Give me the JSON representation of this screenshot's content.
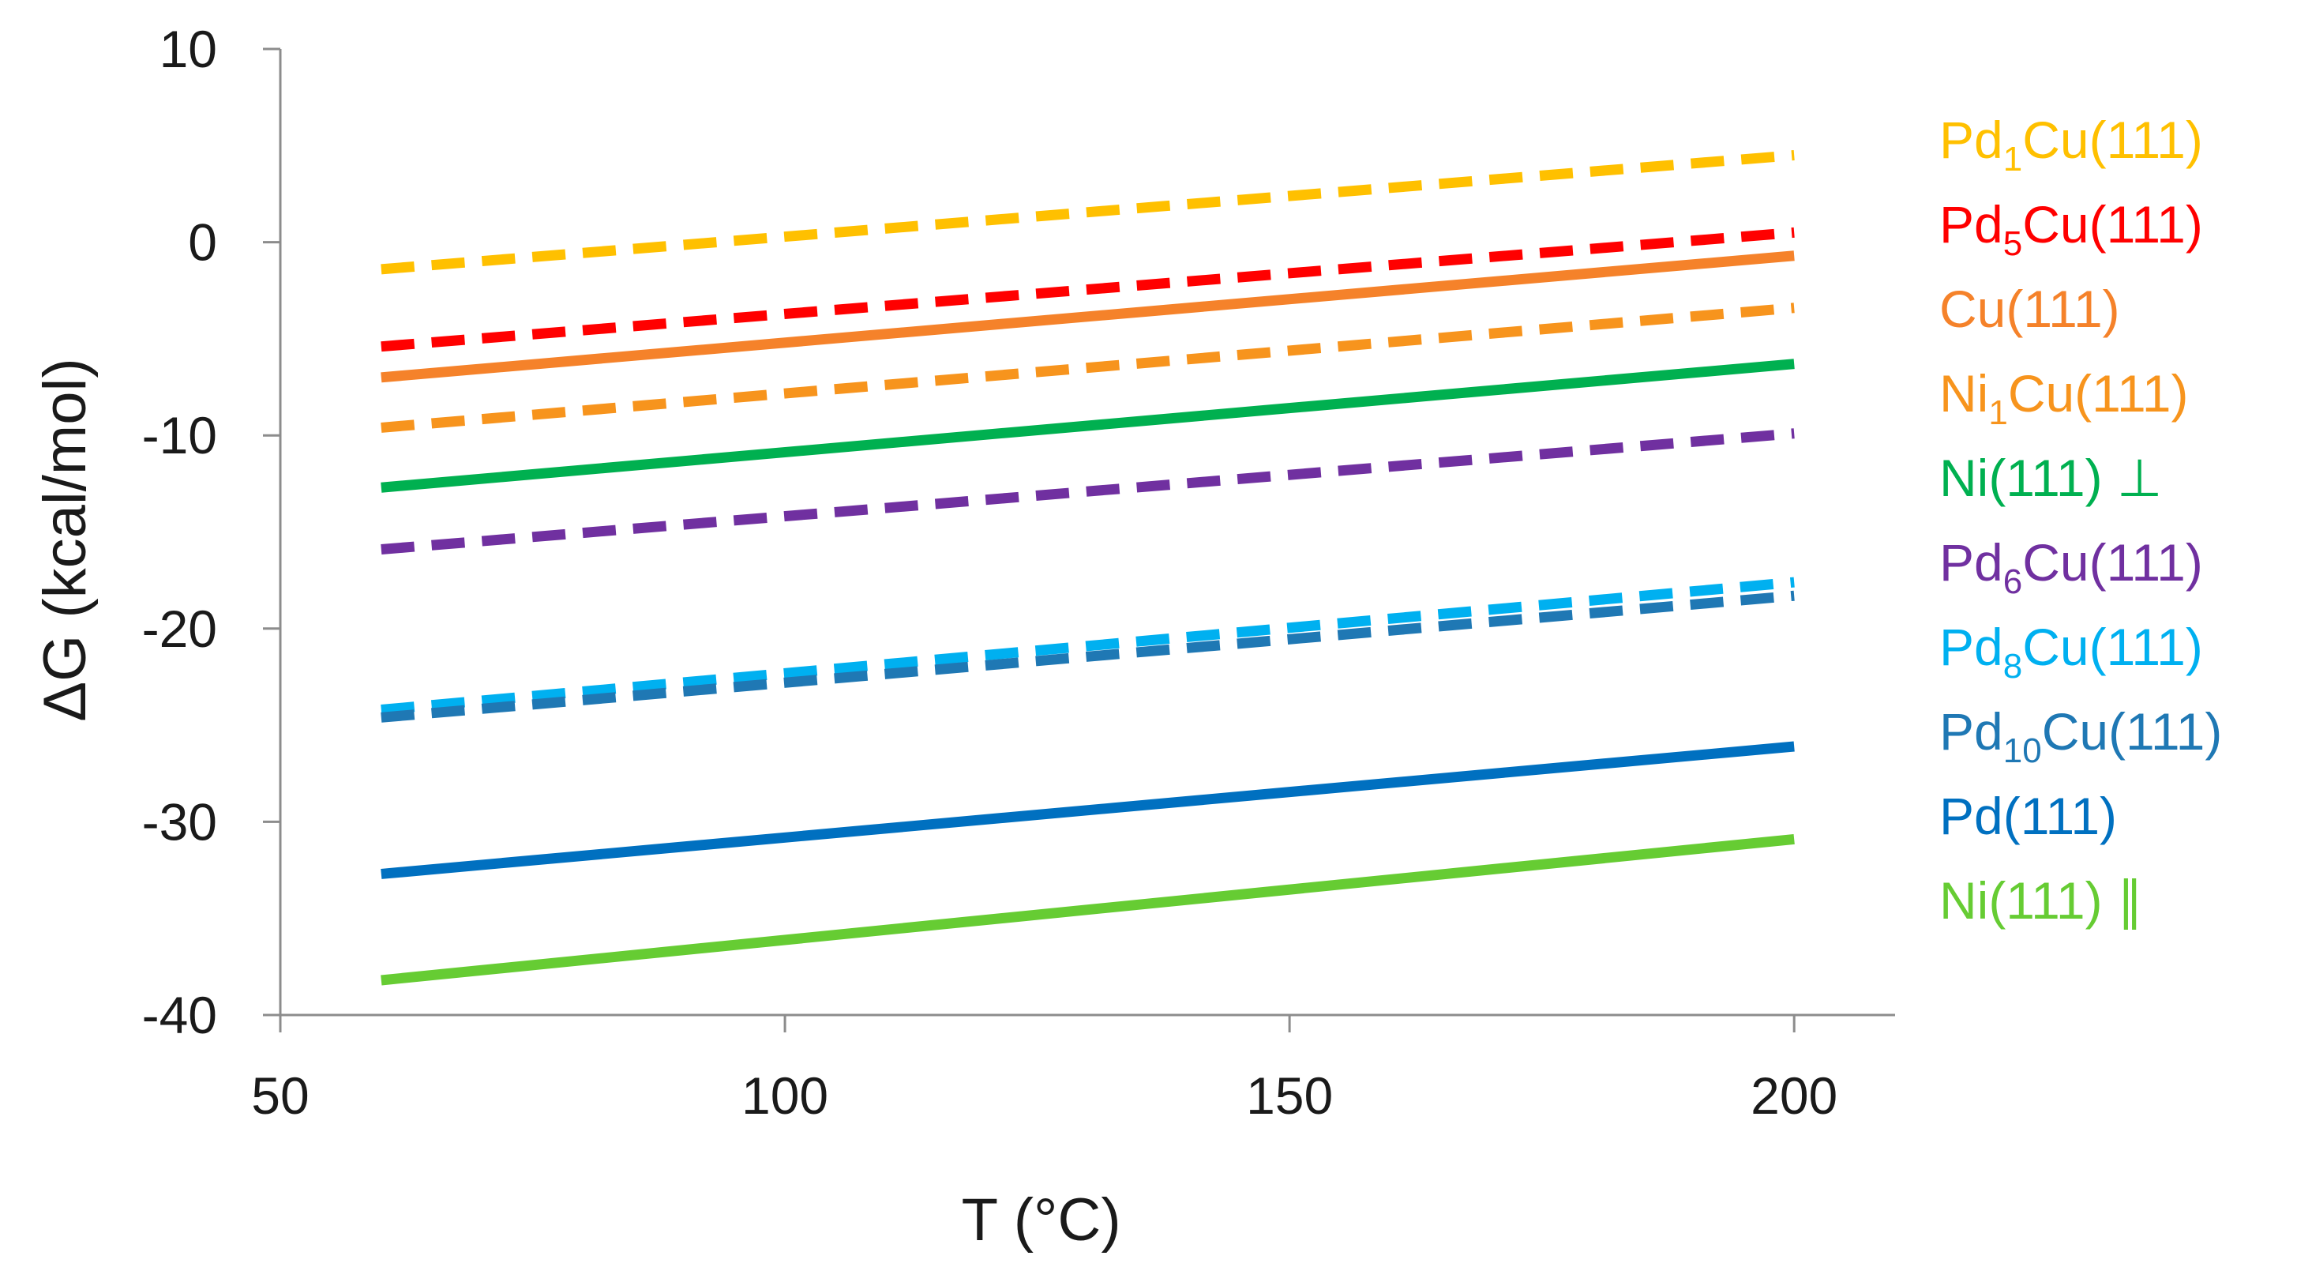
{
  "chart_data": {
    "type": "line",
    "title": "",
    "xlabel": "T (°C)",
    "ylabel": "ΔG (kcal/mol)",
    "xlim": [
      50,
      210
    ],
    "ylim": [
      -40,
      10
    ],
    "xticks": [
      50,
      100,
      150,
      200
    ],
    "yticks": [
      -40,
      -30,
      -20,
      -10,
      0,
      10
    ],
    "grid": false,
    "legend_position": "right",
    "series": [
      {
        "name": "Pd1Cu(111)",
        "label": {
          "base": "Pd",
          "sub": "1",
          "rest": "Cu(111)"
        },
        "color": "#ffc000",
        "dashed": true,
        "x": [
          60,
          200
        ],
        "y": [
          -1.4,
          4.5
        ]
      },
      {
        "name": "Pd5Cu(111)",
        "label": {
          "base": "Pd",
          "sub": "5",
          "rest": "Cu(111)"
        },
        "color": "#ff0000",
        "dashed": true,
        "x": [
          60,
          200
        ],
        "y": [
          -5.4,
          0.5
        ]
      },
      {
        "name": "Cu(111)",
        "label": {
          "base": "Cu(111)",
          "sub": "",
          "rest": ""
        },
        "color": "#f5822a",
        "dashed": false,
        "x": [
          60,
          200
        ],
        "y": [
          -7.0,
          -0.7
        ]
      },
      {
        "name": "Ni1Cu(111)",
        "label": {
          "base": "Ni",
          "sub": "1",
          "rest": "Cu(111)"
        },
        "color": "#f7941d",
        "dashed": true,
        "x": [
          60,
          200
        ],
        "y": [
          -9.6,
          -3.4
        ]
      },
      {
        "name": "Ni(111)⊥",
        "label": {
          "base": "Ni(111) ⊥",
          "sub": "",
          "rest": ""
        },
        "color": "#00b050",
        "dashed": false,
        "x": [
          60,
          200
        ],
        "y": [
          -12.7,
          -6.3
        ]
      },
      {
        "name": "Pd6Cu(111)",
        "label": {
          "base": "Pd",
          "sub": "6",
          "rest": "Cu(111)"
        },
        "color": "#7030a0",
        "dashed": true,
        "x": [
          60,
          200
        ],
        "y": [
          -15.9,
          -9.9
        ]
      },
      {
        "name": "Pd8Cu(111)",
        "label": {
          "base": "Pd",
          "sub": "8",
          "rest": "Cu(111)"
        },
        "color": "#00b0f0",
        "dashed": true,
        "x": [
          60,
          200
        ],
        "y": [
          -24.2,
          -17.6
        ]
      },
      {
        "name": "Pd10Cu(111)",
        "label": {
          "base": "Pd",
          "sub": "10",
          "rest": "Cu(111)"
        },
        "color": "#1f78b4",
        "dashed": true,
        "x": [
          60,
          200
        ],
        "y": [
          -24.6,
          -18.3
        ]
      },
      {
        "name": "Pd(111)",
        "label": {
          "base": "Pd(111)",
          "sub": "",
          "rest": ""
        },
        "color": "#0070c0",
        "dashed": false,
        "x": [
          60,
          200
        ],
        "y": [
          -32.7,
          -26.1
        ]
      },
      {
        "name": "Ni(111)∥",
        "label": {
          "base": "Ni(111) ∥",
          "sub": "",
          "rest": ""
        },
        "color": "#66cc33",
        "dashed": false,
        "x": [
          60,
          200
        ],
        "y": [
          -38.2,
          -30.9
        ]
      }
    ]
  }
}
